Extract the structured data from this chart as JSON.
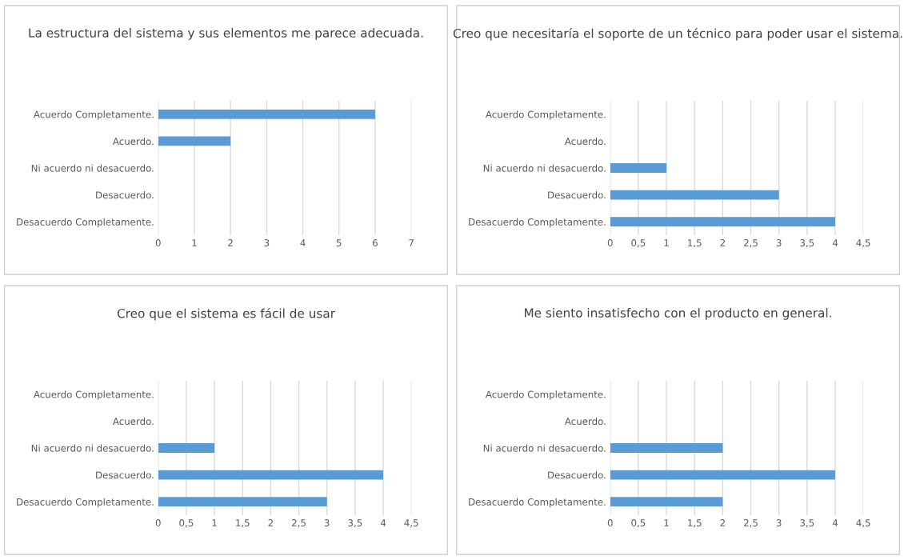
{
  "chart_data": [
    {
      "type": "bar",
      "orientation": "horizontal",
      "title": "La estructura del sistema y sus elementos me parece adecuada.",
      "categories": [
        "Acuerdo Completamente.",
        "Acuerdo.",
        "Ni acuerdo ni desacuerdo.",
        "Desacuerdo.",
        "Desacuerdo Completamente."
      ],
      "values": [
        6,
        2,
        0,
        0,
        0
      ],
      "color": "#5b9bd5",
      "xlim": [
        0,
        7
      ],
      "xticks": [
        0,
        1,
        2,
        3,
        4,
        5,
        6,
        7
      ],
      "grid": "x"
    },
    {
      "type": "bar",
      "orientation": "horizontal",
      "title": "Creo que necesitaría el soporte de un técnico para poder usar el sistema.",
      "categories": [
        "Acuerdo Completamente.",
        "Acuerdo.",
        "Ni acuerdo ni desacuerdo.",
        "Desacuerdo.",
        "Desacuerdo Completamente."
      ],
      "values": [
        0,
        0,
        1,
        3,
        4
      ],
      "color": "#5b9bd5",
      "xlim": [
        0,
        4.5
      ],
      "xticks": [
        0,
        {
          "value": 0.5,
          "label": "0,5"
        },
        1,
        {
          "value": 1.5,
          "label": "1,5"
        },
        2,
        {
          "value": 2.5,
          "label": "2,5"
        },
        3,
        {
          "value": 3.5,
          "label": "3,5"
        },
        4,
        {
          "value": 4.5,
          "label": "4,5"
        }
      ],
      "grid": "x"
    },
    {
      "type": "bar",
      "orientation": "horizontal",
      "title": "Creo que el sistema es fácil de usar",
      "categories": [
        "Acuerdo Completamente.",
        "Acuerdo.",
        "Ni acuerdo ni desacuerdo.",
        "Desacuerdo.",
        "Desacuerdo Completamente."
      ],
      "values": [
        0,
        0,
        1,
        4,
        3
      ],
      "color": "#5b9bd5",
      "xlim": [
        0,
        4.5
      ],
      "xticks": [
        0,
        {
          "value": 0.5,
          "label": "0,5"
        },
        1,
        {
          "value": 1.5,
          "label": "1,5"
        },
        2,
        {
          "value": 2.5,
          "label": "2,5"
        },
        3,
        {
          "value": 3.5,
          "label": "3,5"
        },
        4,
        {
          "value": 4.5,
          "label": "4,5"
        }
      ],
      "grid": "x"
    },
    {
      "type": "bar",
      "orientation": "horizontal",
      "title": "Me siento insatisfecho con el producto en general.",
      "categories": [
        "Acuerdo Completamente.",
        "Acuerdo.",
        "Ni acuerdo ni desacuerdo.",
        "Desacuerdo.",
        "Desacuerdo Completamente."
      ],
      "values": [
        0,
        0,
        2,
        4,
        2
      ],
      "color": "#5b9bd5",
      "xlim": [
        0,
        4.5
      ],
      "xticks": [
        0,
        {
          "value": 0.5,
          "label": "0,5"
        },
        1,
        {
          "value": 1.5,
          "label": "1,5"
        },
        2,
        {
          "value": 2.5,
          "label": "2,5"
        },
        3,
        {
          "value": 3.5,
          "label": "3,5"
        },
        4,
        {
          "value": 4.5,
          "label": "4,5"
        }
      ],
      "grid": "x"
    }
  ]
}
